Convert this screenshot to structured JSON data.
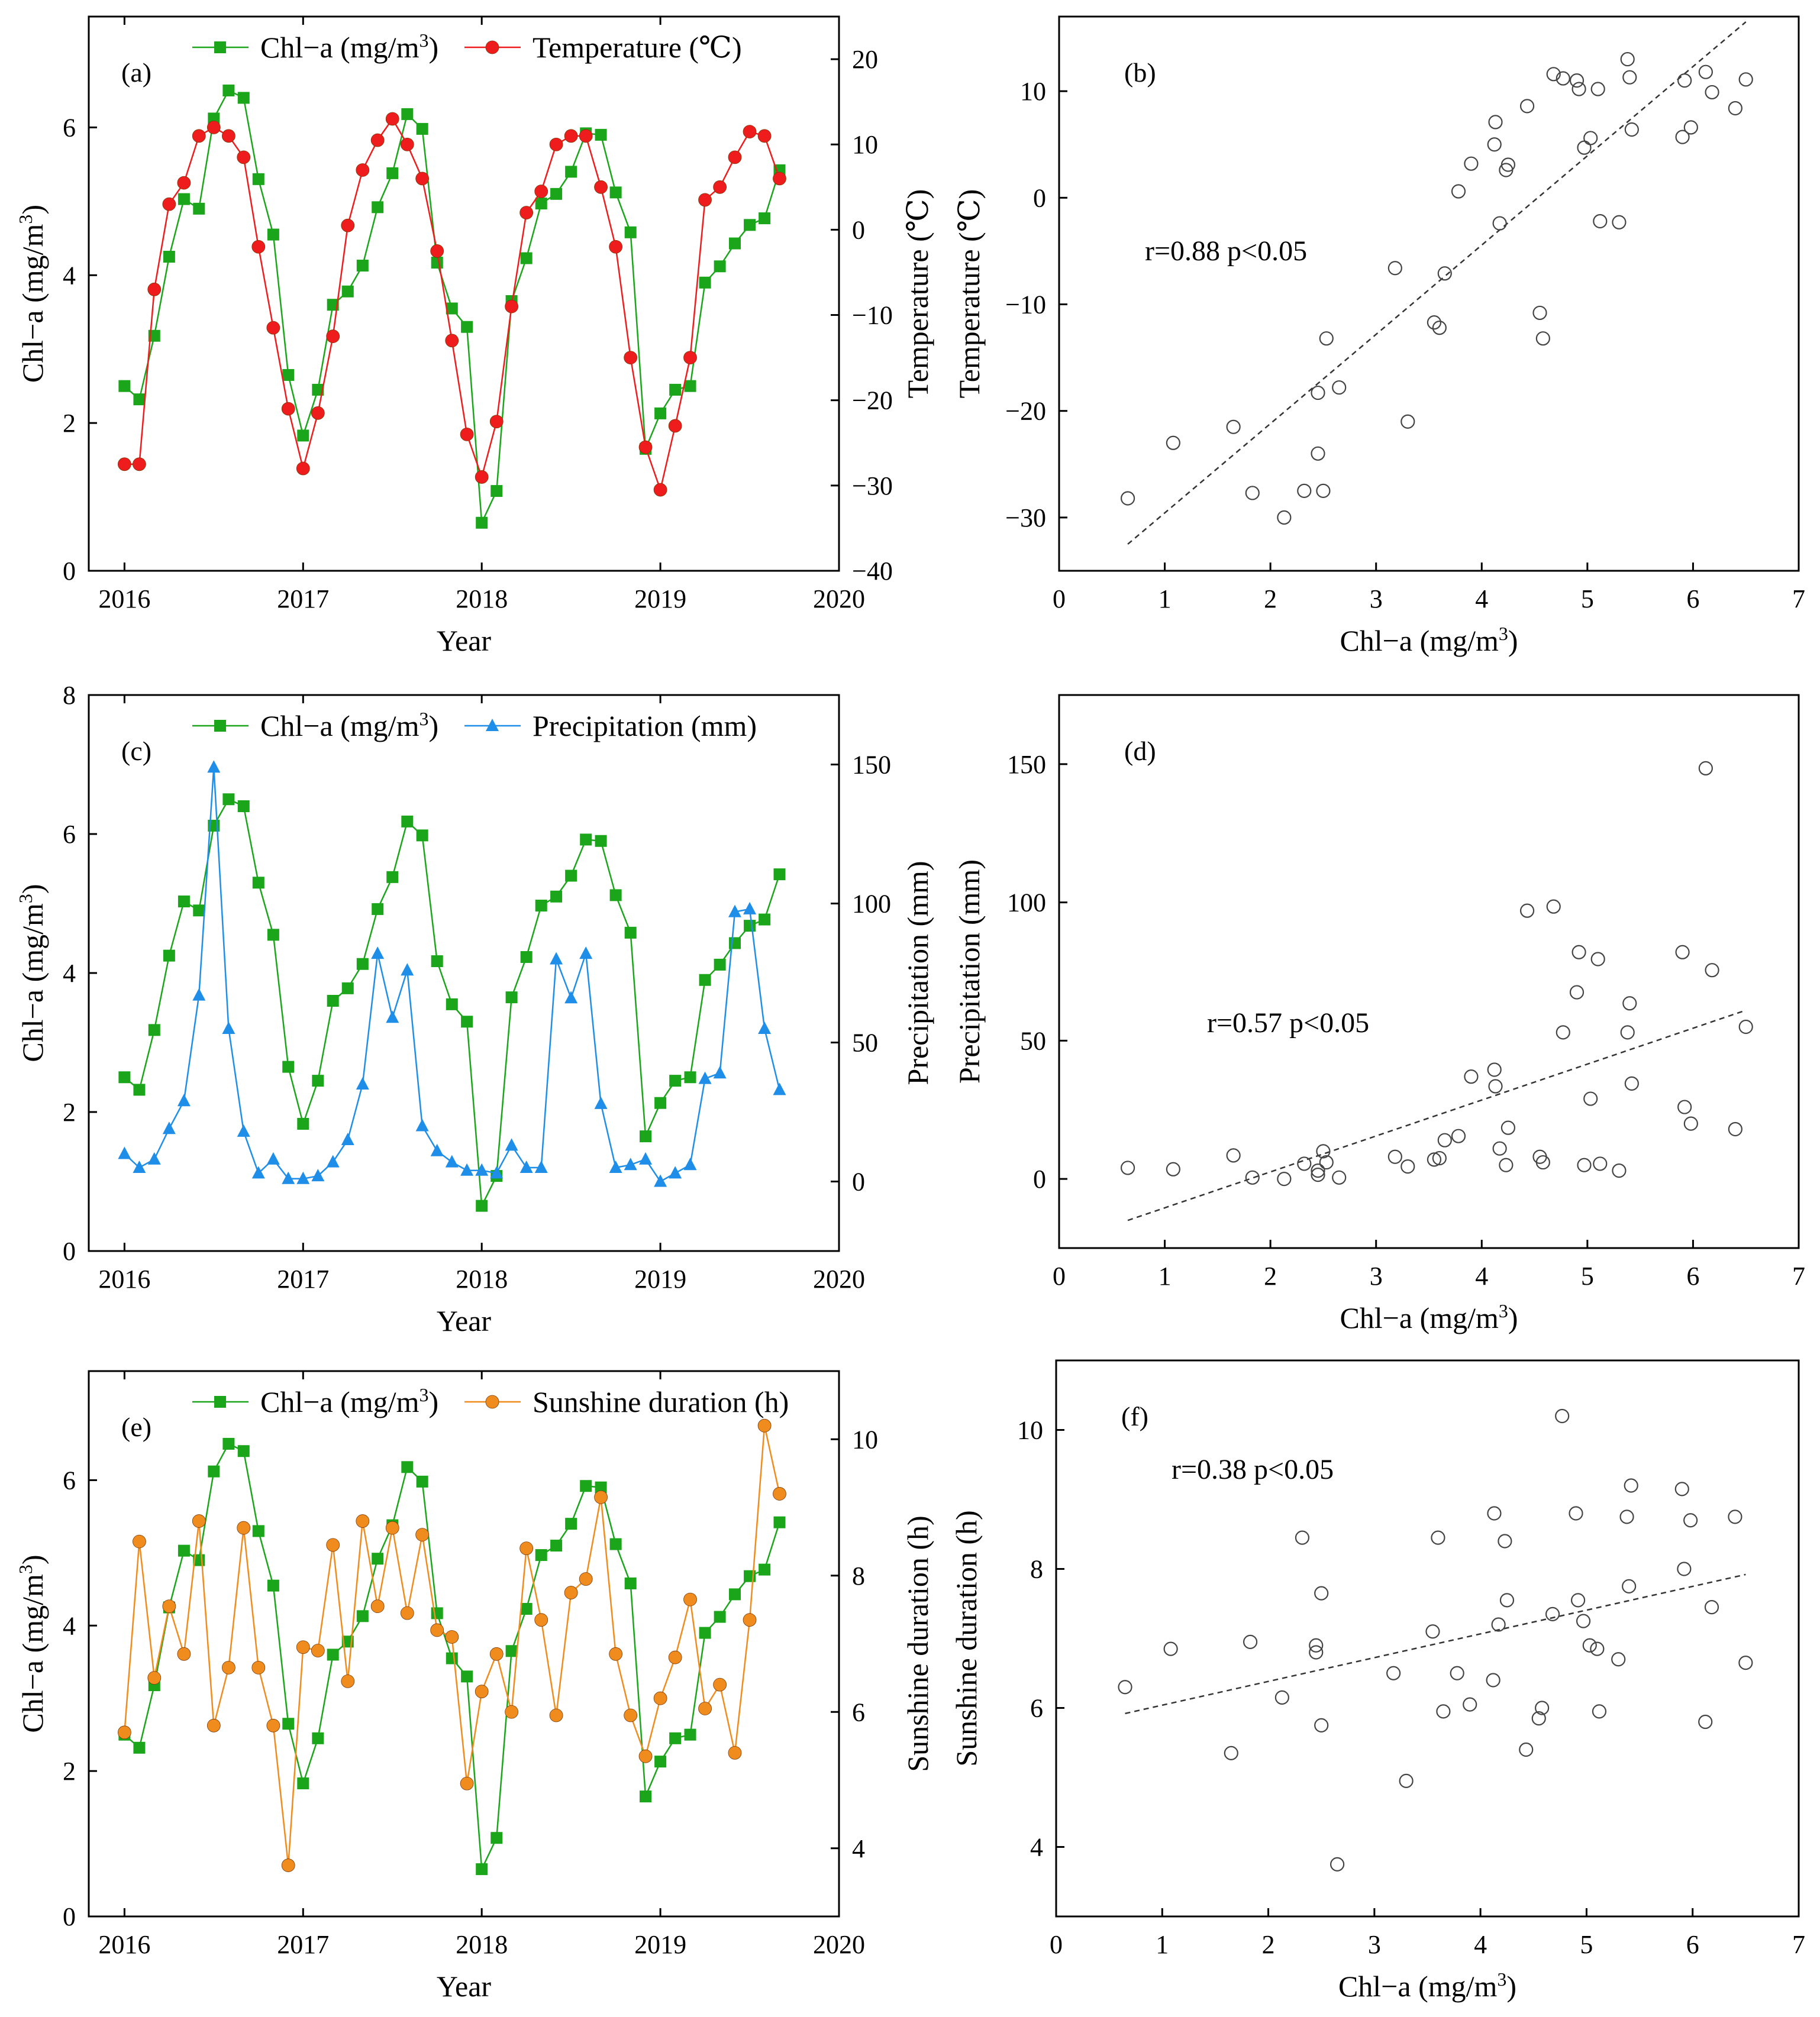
{
  "chart_data": [
    {
      "panel": "(a)",
      "type": "line",
      "x": [
        2016.0,
        2016.083,
        2016.167,
        2016.25,
        2016.333,
        2016.417,
        2016.5,
        2016.583,
        2016.667,
        2016.75,
        2016.833,
        2016.917,
        2017.0,
        2017.083,
        2017.167,
        2017.25,
        2017.333,
        2017.417,
        2017.5,
        2017.583,
        2017.667,
        2017.75,
        2017.833,
        2017.917,
        2018.0,
        2018.083,
        2018.167,
        2018.25,
        2018.333,
        2018.417,
        2018.5,
        2018.583,
        2018.667,
        2018.75,
        2018.833,
        2018.917,
        2019.0,
        2019.083,
        2019.167,
        2019.25,
        2019.333,
        2019.417,
        2019.5,
        2019.583,
        2019.667
      ],
      "xlim": [
        2015.8,
        2020.0
      ],
      "xticks": [
        "2016",
        "2017",
        "2018",
        "2019",
        "2020"
      ],
      "xlabel": "Year",
      "left_axis": {
        "label": "Chl−a (mg/m³)",
        "lim": [
          0,
          7.5
        ],
        "ticks": [
          "0",
          "2",
          "4",
          "6"
        ]
      },
      "right_axis": {
        "label": "Temperature (℃)",
        "lim": [
          -40,
          25
        ],
        "ticks": [
          "−40",
          "−30",
          "−20",
          "−10",
          "0",
          "10",
          "20"
        ]
      },
      "legend": [
        "Chl−a (mg/m³)",
        "Temperature (℃)"
      ],
      "series": [
        {
          "name": "Chl−a (mg/m³)",
          "axis": "left",
          "color": "#1aa51a",
          "marker": "square",
          "values": [
            2.5,
            2.32,
            3.18,
            4.25,
            5.03,
            4.9,
            6.12,
            6.5,
            6.4,
            5.3,
            4.55,
            2.65,
            1.83,
            2.45,
            3.6,
            3.78,
            4.13,
            4.92,
            5.38,
            6.18,
            5.98,
            4.17,
            3.55,
            3.3,
            0.65,
            1.08,
            3.65,
            4.23,
            4.97,
            5.1,
            5.4,
            5.92,
            5.9,
            5.12,
            4.58,
            1.65,
            2.13,
            2.45,
            2.5,
            3.9,
            4.12,
            4.43,
            4.68,
            4.77,
            5.42
          ]
        },
        {
          "name": "Temperature (℃)",
          "axis": "right",
          "color": "#ee1c1c",
          "marker": "circle",
          "values": [
            -27.5,
            -27.5,
            -7,
            3,
            5.5,
            11,
            12,
            11,
            8.5,
            -2,
            -11.5,
            -21,
            -28,
            -21.5,
            -12.5,
            0.5,
            7,
            10.5,
            13,
            10,
            6,
            -2.5,
            -13,
            -24,
            -29,
            -22.5,
            -9,
            2,
            4.5,
            10,
            11,
            11,
            5,
            -2,
            -15,
            -25.5,
            -30.5,
            -23,
            -15,
            3.5,
            5,
            8.5,
            11.5,
            11,
            6
          ]
        }
      ]
    },
    {
      "panel": "(b)",
      "type": "scatter",
      "xlabel": "Chl−a (mg/m³)",
      "ylabel": "Temperature (℃)",
      "xlim": [
        0,
        7
      ],
      "ylim": [
        -35,
        17
      ],
      "xticks": [
        "0",
        "1",
        "2",
        "3",
        "4",
        "5",
        "6",
        "7"
      ],
      "yticks": [
        "−30",
        "−20",
        "−10",
        "0",
        "10"
      ],
      "annotation": "r=0.88  p<0.05",
      "fit": {
        "x": [
          0.65,
          6.5
        ],
        "y": [
          -32.5,
          16.5
        ]
      },
      "points": [
        [
          0.65,
          -28.2
        ],
        [
          1.08,
          -23
        ],
        [
          1.65,
          -21.5
        ],
        [
          1.83,
          -27.7
        ],
        [
          2.13,
          -30
        ],
        [
          2.32,
          -27.5
        ],
        [
          2.45,
          -18.3
        ],
        [
          2.45,
          -24
        ],
        [
          2.5,
          -27.5
        ],
        [
          2.53,
          -13.2
        ],
        [
          2.65,
          -17.8
        ],
        [
          3.18,
          -6.6
        ],
        [
          3.3,
          -21
        ],
        [
          3.55,
          -11.7
        ],
        [
          3.6,
          -12.2
        ],
        [
          3.65,
          -7.1
        ],
        [
          3.78,
          0.6
        ],
        [
          3.9,
          3.2
        ],
        [
          4.12,
          5
        ],
        [
          4.13,
          7.1
        ],
        [
          4.17,
          -2.4
        ],
        [
          4.23,
          2.6
        ],
        [
          4.25,
          3.1
        ],
        [
          4.43,
          8.6
        ],
        [
          4.55,
          -10.8
        ],
        [
          4.58,
          -13.2
        ],
        [
          4.68,
          11.6
        ],
        [
          4.77,
          11.2
        ],
        [
          4.9,
          11
        ],
        [
          4.92,
          10.2
        ],
        [
          4.97,
          4.7
        ],
        [
          5.03,
          5.6
        ],
        [
          5.1,
          10.2
        ],
        [
          5.12,
          -2.2
        ],
        [
          5.3,
          -2.3
        ],
        [
          5.38,
          13
        ],
        [
          5.4,
          11.3
        ],
        [
          5.42,
          6.4
        ],
        [
          5.9,
          5.7
        ],
        [
          5.92,
          11
        ],
        [
          5.98,
          6.6
        ],
        [
          6.12,
          11.8
        ],
        [
          6.18,
          9.9
        ],
        [
          6.4,
          8.4
        ],
        [
          6.5,
          11.1
        ]
      ]
    },
    {
      "panel": "(c)",
      "type": "line",
      "x": [
        2016.0,
        2016.083,
        2016.167,
        2016.25,
        2016.333,
        2016.417,
        2016.5,
        2016.583,
        2016.667,
        2016.75,
        2016.833,
        2016.917,
        2017.0,
        2017.083,
        2017.167,
        2017.25,
        2017.333,
        2017.417,
        2017.5,
        2017.583,
        2017.667,
        2017.75,
        2017.833,
        2017.917,
        2018.0,
        2018.083,
        2018.167,
        2018.25,
        2018.333,
        2018.417,
        2018.5,
        2018.583,
        2018.667,
        2018.75,
        2018.833,
        2018.917,
        2019.0,
        2019.083,
        2019.167,
        2019.25,
        2019.333,
        2019.417,
        2019.5,
        2019.583,
        2019.667
      ],
      "xlim": [
        2015.8,
        2020.0
      ],
      "xticks": [
        "2016",
        "2017",
        "2018",
        "2019",
        "2020"
      ],
      "xlabel": "Year",
      "left_axis": {
        "label": "Chl−a (mg/m³)",
        "lim": [
          0,
          8
        ],
        "ticks": [
          "0",
          "2",
          "4",
          "6",
          "8"
        ]
      },
      "right_axis": {
        "label": "Precipitation (mm)",
        "lim": [
          -25,
          175
        ],
        "ticks": [
          "0",
          "50",
          "100",
          "150"
        ]
      },
      "legend": [
        "Chl−a (mg/m³)",
        "Precipitation (mm)"
      ],
      "series": [
        {
          "name": "Chl−a (mg/m³)",
          "axis": "left",
          "color": "#1aa51a",
          "marker": "square",
          "values": [
            2.5,
            2.32,
            3.18,
            4.25,
            5.03,
            4.9,
            6.12,
            6.5,
            6.4,
            5.3,
            4.55,
            2.65,
            1.83,
            2.45,
            3.6,
            3.78,
            4.13,
            4.92,
            5.38,
            6.18,
            5.98,
            4.17,
            3.55,
            3.3,
            0.65,
            1.08,
            3.65,
            4.23,
            4.97,
            5.1,
            5.4,
            5.92,
            5.9,
            5.12,
            4.58,
            1.65,
            2.13,
            2.45,
            2.5,
            3.9,
            4.12,
            4.43,
            4.68,
            4.77,
            5.42
          ]
        },
        {
          "name": "Precipitation (mm)",
          "axis": "right",
          "color": "#1e8ee8",
          "marker": "triangle",
          "values": [
            10,
            5,
            8,
            19,
            29,
            67,
            149,
            55,
            18,
            3,
            8,
            1,
            1,
            2,
            7,
            15,
            35,
            82,
            59,
            76,
            20,
            11,
            7,
            4,
            4,
            3,
            13,
            5,
            5,
            80,
            66,
            82,
            28,
            5,
            6,
            8,
            0,
            3,
            6,
            37,
            39,
            97,
            98,
            55,
            33
          ]
        }
      ]
    },
    {
      "panel": "(d)",
      "type": "scatter",
      "xlabel": "Chl−a (mg/m³)",
      "ylabel": "Precipitation (mm)",
      "xlim": [
        0,
        7
      ],
      "ylim": [
        -25,
        175
      ],
      "xticks": [
        "0",
        "1",
        "2",
        "3",
        "4",
        "5",
        "6",
        "7"
      ],
      "yticks": [
        "0",
        "50",
        "100",
        "150"
      ],
      "annotation": "r=0.57   p<0.05",
      "fit": {
        "x": [
          0.65,
          6.5
        ],
        "y": [
          -15,
          61
        ]
      },
      "points": [
        [
          0.65,
          4
        ],
        [
          1.08,
          3.5
        ],
        [
          1.65,
          8.5
        ],
        [
          1.83,
          0.5
        ],
        [
          2.13,
          0
        ],
        [
          2.32,
          5.5
        ],
        [
          2.45,
          3
        ],
        [
          2.45,
          1.5
        ],
        [
          2.5,
          10
        ],
        [
          2.53,
          6
        ],
        [
          2.65,
          0.5
        ],
        [
          3.18,
          8
        ],
        [
          3.3,
          4.5
        ],
        [
          3.55,
          7
        ],
        [
          3.6,
          7.5
        ],
        [
          3.65,
          14
        ],
        [
          3.78,
          15.5
        ],
        [
          3.9,
          37
        ],
        [
          4.12,
          39.5
        ],
        [
          4.13,
          33.5
        ],
        [
          4.17,
          11
        ],
        [
          4.23,
          5
        ],
        [
          4.25,
          18.5
        ],
        [
          4.43,
          97
        ],
        [
          4.55,
          8
        ],
        [
          4.58,
          6
        ],
        [
          4.68,
          98.5
        ],
        [
          4.77,
          53
        ],
        [
          4.9,
          67.5
        ],
        [
          4.92,
          82
        ],
        [
          4.97,
          5
        ],
        [
          5.03,
          29
        ],
        [
          5.1,
          79.5
        ],
        [
          5.12,
          5.5
        ],
        [
          5.3,
          3
        ],
        [
          5.38,
          53
        ],
        [
          5.4,
          63.5
        ],
        [
          5.42,
          34.5
        ],
        [
          5.9,
          82
        ],
        [
          5.92,
          26
        ],
        [
          5.98,
          20
        ],
        [
          6.12,
          148.5
        ],
        [
          6.18,
          75.5
        ],
        [
          6.4,
          18
        ],
        [
          6.5,
          55
        ]
      ]
    },
    {
      "panel": "(e)",
      "type": "line",
      "x": [
        2016.0,
        2016.083,
        2016.167,
        2016.25,
        2016.333,
        2016.417,
        2016.5,
        2016.583,
        2016.667,
        2016.75,
        2016.833,
        2016.917,
        2017.0,
        2017.083,
        2017.167,
        2017.25,
        2017.333,
        2017.417,
        2017.5,
        2017.583,
        2017.667,
        2017.75,
        2017.833,
        2017.917,
        2018.0,
        2018.083,
        2018.167,
        2018.25,
        2018.333,
        2018.417,
        2018.5,
        2018.583,
        2018.667,
        2018.75,
        2018.833,
        2018.917,
        2019.0,
        2019.083,
        2019.167,
        2019.25,
        2019.333,
        2019.417,
        2019.5,
        2019.583,
        2019.667
      ],
      "xlim": [
        2015.8,
        2020.0
      ],
      "xticks": [
        "2016",
        "2017",
        "2018",
        "2019",
        "2020"
      ],
      "xlabel": "Year",
      "left_axis": {
        "label": "Chl−a (mg/m³)",
        "lim": [
          0,
          7.5
        ],
        "ticks": [
          "0",
          "2",
          "4",
          "6"
        ]
      },
      "right_axis": {
        "label": "Sunshine duration (h)",
        "lim": [
          3,
          11
        ],
        "ticks": [
          "4",
          "6",
          "8",
          "10"
        ]
      },
      "legend": [
        "Chl−a (mg/m³)",
        "Sunshine duration (h)"
      ],
      "series": [
        {
          "name": "Chl−a (mg/m³)",
          "axis": "left",
          "color": "#1aa51a",
          "marker": "square",
          "values": [
            2.5,
            2.32,
            3.18,
            4.25,
            5.03,
            4.9,
            6.12,
            6.5,
            6.4,
            5.3,
            4.55,
            2.65,
            1.83,
            2.45,
            3.6,
            3.78,
            4.13,
            4.92,
            5.38,
            6.18,
            5.98,
            4.17,
            3.55,
            3.3,
            0.65,
            1.08,
            3.65,
            4.23,
            4.97,
            5.1,
            5.4,
            5.92,
            5.9,
            5.12,
            4.58,
            1.65,
            2.13,
            2.45,
            2.5,
            3.9,
            4.12,
            4.43,
            4.68,
            4.77,
            5.42
          ]
        },
        {
          "name": "Sunshine duration (h)",
          "axis": "right",
          "color": "#f08c1e",
          "marker": "circle",
          "values": [
            5.7,
            8.5,
            6.5,
            7.55,
            6.85,
            8.8,
            5.8,
            6.65,
            8.7,
            6.65,
            5.8,
            3.75,
            6.95,
            6.9,
            8.45,
            6.45,
            8.8,
            7.55,
            8.7,
            7.45,
            8.6,
            7.2,
            7.1,
            4.95,
            6.3,
            6.85,
            6.0,
            8.4,
            7.35,
            5.95,
            7.75,
            7.95,
            9.15,
            6.85,
            5.95,
            5.35,
            6.2,
            6.8,
            7.65,
            6.05,
            6.4,
            5.4,
            7.35,
            10.2,
            9.2
          ]
        }
      ]
    },
    {
      "panel": "(f)",
      "type": "scatter",
      "xlabel": "Chl−a (mg/m³)",
      "ylabel": "Sunshine duration (h)",
      "xlim": [
        0,
        7
      ],
      "ylim": [
        3,
        11
      ],
      "xticks": [
        "0",
        "1",
        "2",
        "3",
        "4",
        "5",
        "6",
        "7"
      ],
      "yticks": [
        "4",
        "6",
        "8",
        "10"
      ],
      "annotation": "r=0.38  p<0.05",
      "fit": {
        "x": [
          0.65,
          6.5
        ],
        "y": [
          5.92,
          7.92
        ]
      },
      "points": [
        [
          0.65,
          6.3
        ],
        [
          1.08,
          6.85
        ],
        [
          1.65,
          5.35
        ],
        [
          1.83,
          6.95
        ],
        [
          2.13,
          6.15
        ],
        [
          2.32,
          8.45
        ],
        [
          2.45,
          6.9
        ],
        [
          2.45,
          6.8
        ],
        [
          2.5,
          5.75
        ],
        [
          2.5,
          7.65
        ],
        [
          2.65,
          3.75
        ],
        [
          3.18,
          6.5
        ],
        [
          3.3,
          4.95
        ],
        [
          3.55,
          7.1
        ],
        [
          3.6,
          8.45
        ],
        [
          3.65,
          5.95
        ],
        [
          3.78,
          6.5
        ],
        [
          3.9,
          6.05
        ],
        [
          4.12,
          6.4
        ],
        [
          4.13,
          8.8
        ],
        [
          4.17,
          7.2
        ],
        [
          4.23,
          8.4
        ],
        [
          4.25,
          7.55
        ],
        [
          4.43,
          5.4
        ],
        [
          4.55,
          5.85
        ],
        [
          4.58,
          6.0
        ],
        [
          4.68,
          7.35
        ],
        [
          4.77,
          10.2
        ],
        [
          4.9,
          8.8
        ],
        [
          4.92,
          7.55
        ],
        [
          4.97,
          7.25
        ],
        [
          5.03,
          6.9
        ],
        [
          5.1,
          6.85
        ],
        [
          5.12,
          5.95
        ],
        [
          5.3,
          6.7
        ],
        [
          5.38,
          8.75
        ],
        [
          5.4,
          7.75
        ],
        [
          5.42,
          9.2
        ],
        [
          5.9,
          9.15
        ],
        [
          5.92,
          8.0
        ],
        [
          5.98,
          8.7
        ],
        [
          6.12,
          5.8
        ],
        [
          6.18,
          7.45
        ],
        [
          6.4,
          8.75
        ],
        [
          6.5,
          6.65
        ]
      ]
    }
  ]
}
